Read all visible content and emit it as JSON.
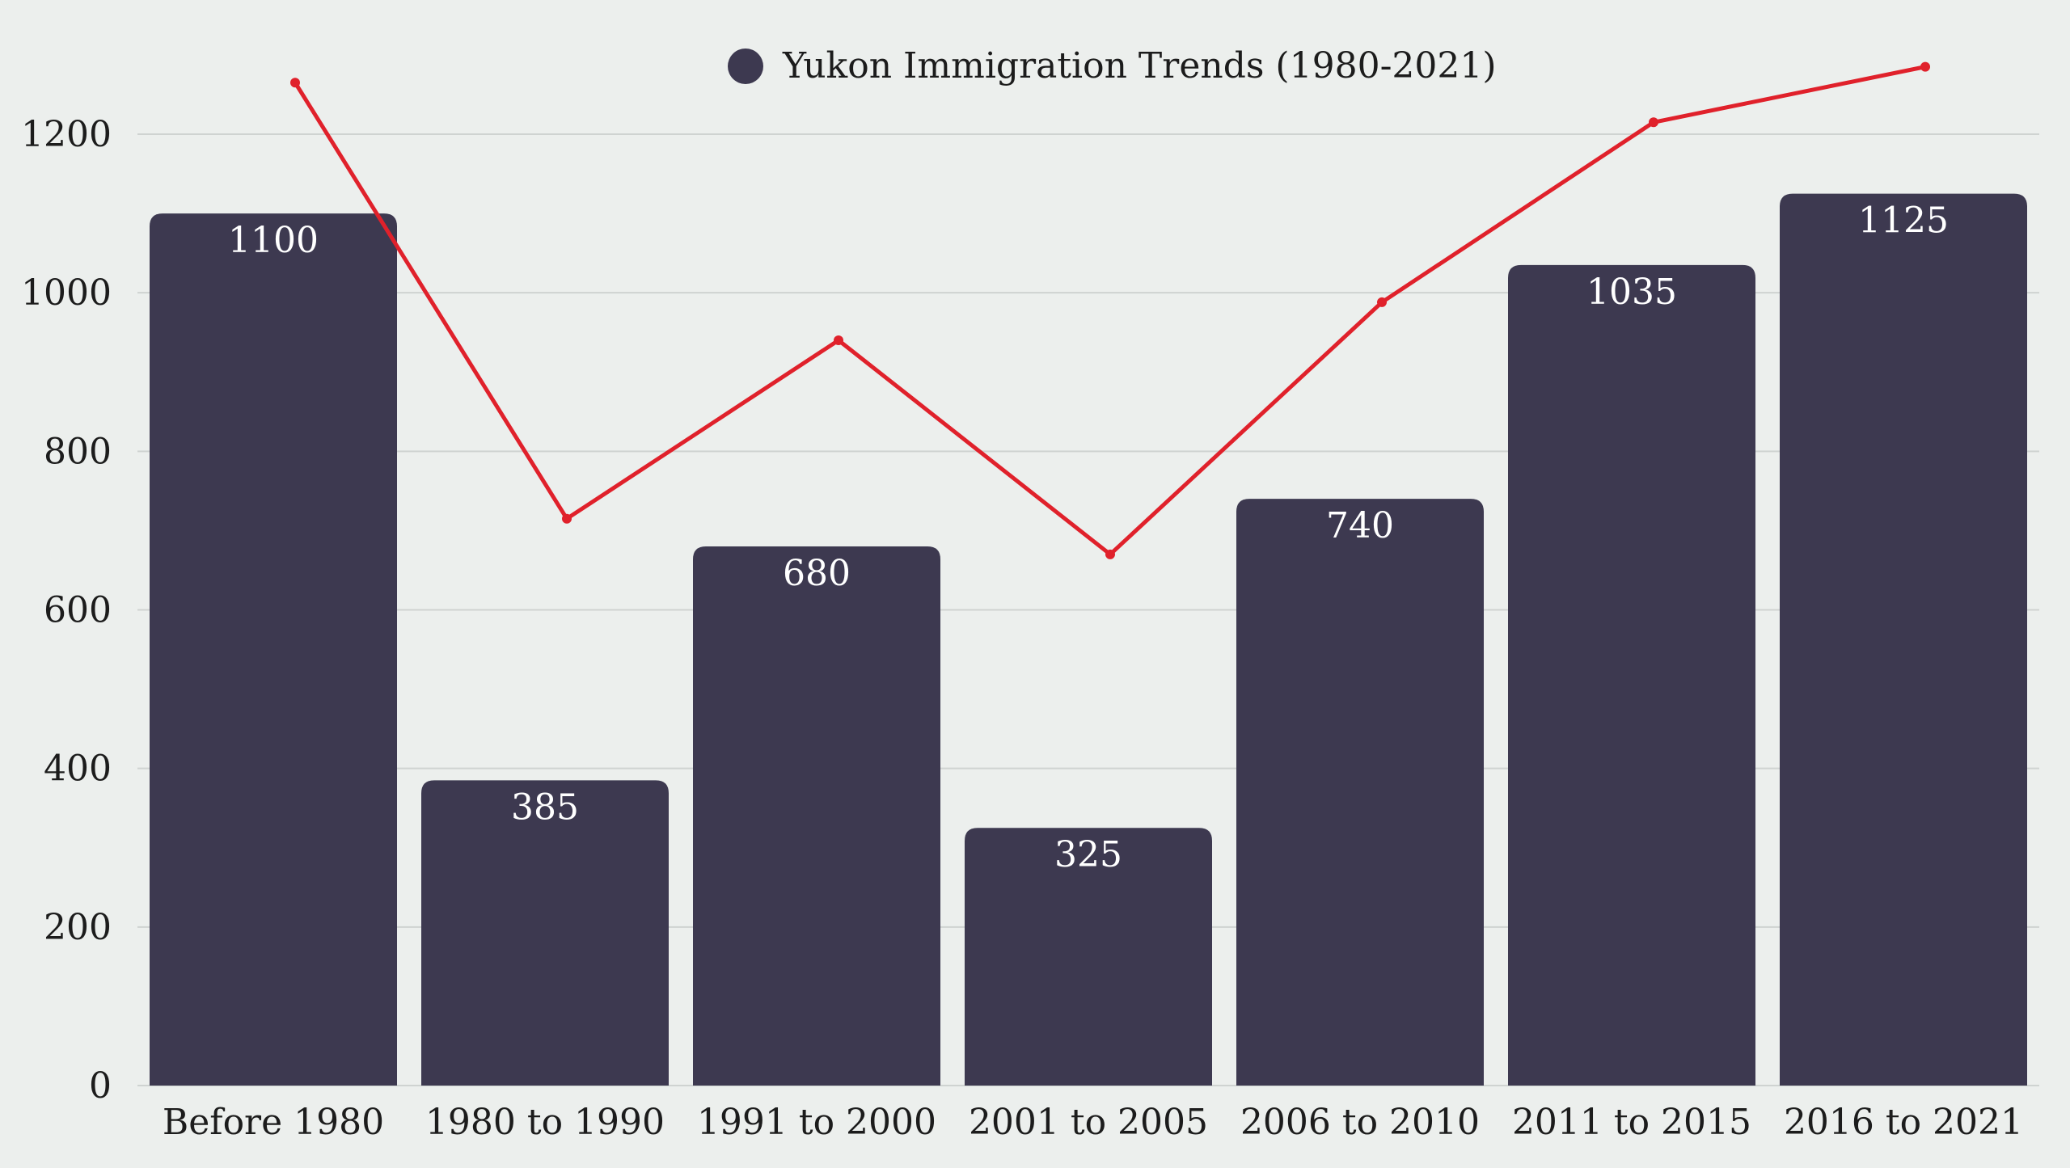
{
  "chart_data": {
    "type": "bar",
    "legend": {
      "label": "Yukon Immigration Trends (1980-2021)",
      "placement": "top-center"
    },
    "categories": [
      "Before 1980",
      "1980 to 1990",
      "1991 to 2000",
      "2001 to 2005",
      "2006 to 2010",
      "2011 to 2015",
      "2016 to 2021"
    ],
    "series": [
      {
        "name": "Yukon Immigration Trends (1980-2021)",
        "type": "bar",
        "values": [
          1100,
          385,
          680,
          325,
          740,
          1035,
          1125
        ],
        "color": "#3d3950"
      },
      {
        "type": "line",
        "values": [
          1265,
          715,
          940,
          670,
          988,
          1215,
          1285
        ],
        "color": "#e0212b"
      }
    ],
    "yticks": [
      0,
      200,
      400,
      600,
      800,
      1000,
      1200
    ],
    "ylim": [
      0,
      1200
    ],
    "grid": true,
    "colors": {
      "background": "#ecefed",
      "grid": "#cfd3d1",
      "bar": "#3d3950",
      "line": "#e0212b",
      "bar_label": "#ffffff",
      "text": "#1c1c1c"
    }
  }
}
